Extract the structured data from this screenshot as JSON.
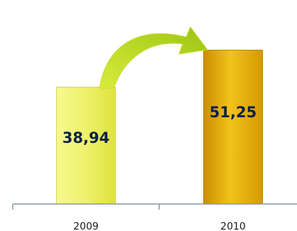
{
  "chart_data": {
    "type": "bar",
    "categories": [
      "2009",
      "2010"
    ],
    "values": [
      38.94,
      51.25
    ],
    "value_labels": [
      "38,94",
      "51,25"
    ],
    "title": "",
    "xlabel": "",
    "ylabel": "",
    "ylim": [
      0,
      58
    ],
    "grid": false,
    "legend": "none",
    "annotation": "curved arrow pointing from 2009 bar to 2010 bar",
    "colors": {
      "bar_2009": "#eef26a",
      "bar_2010": "#e9b000",
      "arrow": "#b9d81a",
      "value_text": "#0e2049",
      "axis": "#8a95a5"
    }
  }
}
